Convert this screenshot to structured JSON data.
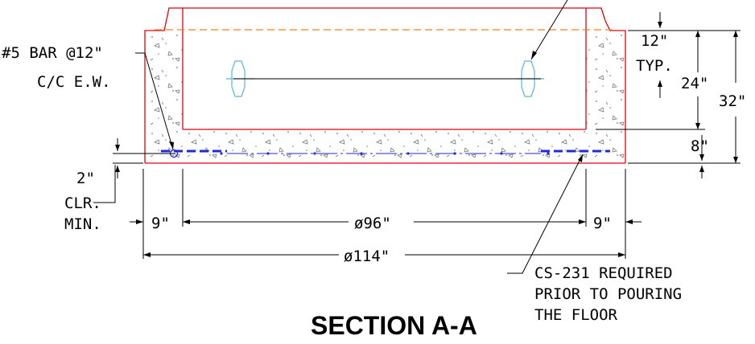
{
  "drawing": {
    "title": "SECTION A-A",
    "labels": {
      "rebar_line1": "#5 BAR @12\"",
      "rebar_line2": "C/C E.W.",
      "clear_line1": "2\"",
      "clear_line2": "CLR.",
      "clear_line3": "MIN.",
      "wall_left": "9\"",
      "wall_right": "9\"",
      "inner_dia": "ø96\"",
      "outer_dia": "ø114\"",
      "dim_12": "12\"",
      "typ": "TYP.",
      "dim_24": "24\"",
      "dim_32": "32\"",
      "dim_8": "8\"",
      "note_line1": "CS-231 REQUIRED",
      "note_line2": "PRIOR TO POURING",
      "note_line3": "THE FLOOR"
    },
    "colors": {
      "outline": "#e8000e",
      "rebar": "#1f2bd6",
      "hidden": "#f07d1c",
      "anchor": "#5bb5d9",
      "dimension": "#000000"
    }
  }
}
